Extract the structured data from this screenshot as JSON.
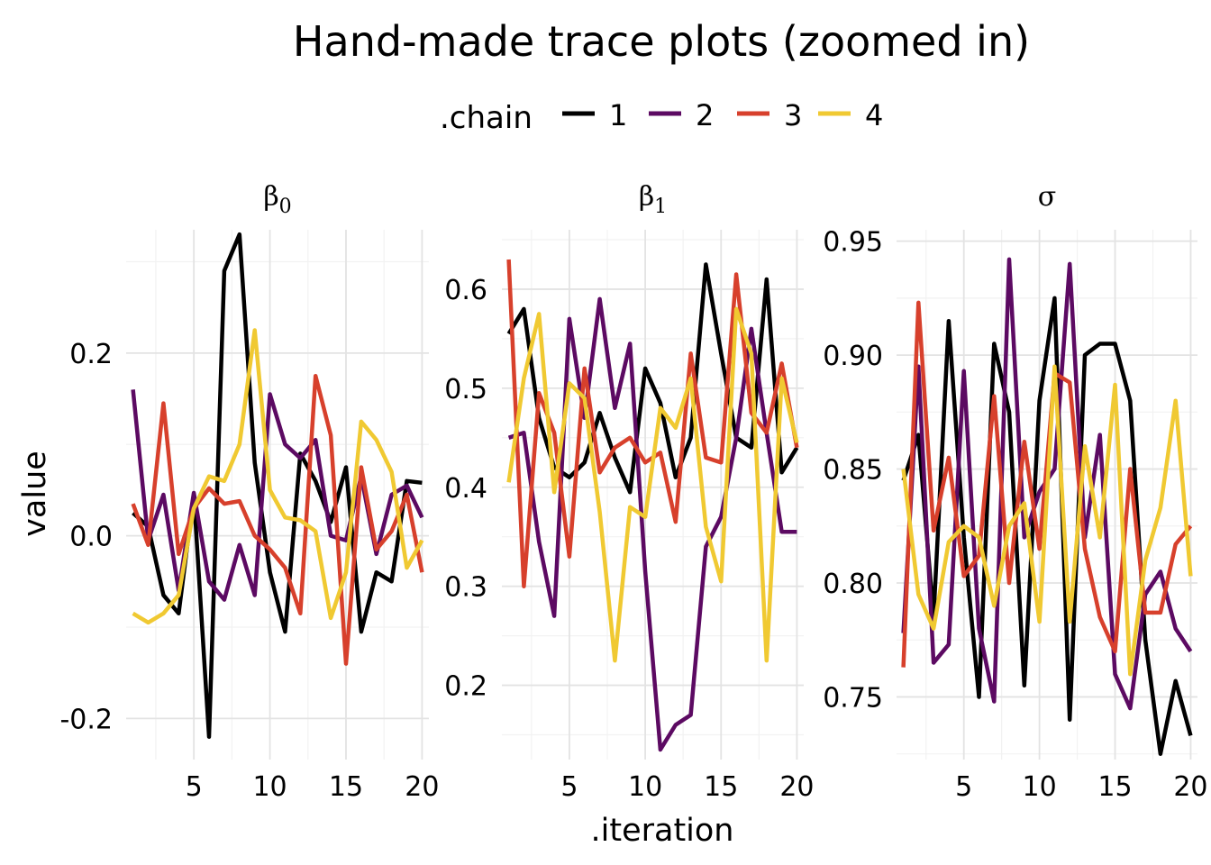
{
  "chart_data": {
    "type": "line",
    "title": "Hand-made trace plots (zoomed in)",
    "legend_title": ".chain",
    "legend_position": "top",
    "xlabel": ".iteration",
    "ylabel": "value",
    "grid": true,
    "colors": {
      "1": "#000000",
      "2": "#5c0a62",
      "3": "#d7402c",
      "4": "#f0c932"
    },
    "x": [
      1,
      2,
      3,
      4,
      5,
      6,
      7,
      8,
      9,
      10,
      11,
      12,
      13,
      14,
      15,
      16,
      17,
      18,
      19,
      20
    ],
    "x_ticks": [
      5,
      10,
      15,
      20
    ],
    "x_tick_labels": [
      "5",
      "10",
      "15",
      "20"
    ],
    "panels": [
      {
        "label_base": "β",
        "label_sub": "0",
        "ylim": [
          -0.245,
          0.335
        ],
        "y_ticks": [
          -0.2,
          0.0,
          0.2
        ],
        "y_tick_labels": [
          "-0.2",
          "0.0",
          "0.2"
        ],
        "series": [
          {
            "name": "1",
            "values": [
              0.025,
              0.01,
              -0.065,
              -0.085,
              0.045,
              -0.22,
              0.29,
              0.33,
              0.08,
              -0.04,
              -0.105,
              0.09,
              0.06,
              0.015,
              0.075,
              -0.105,
              -0.04,
              -0.05,
              0.06,
              0.058
            ]
          },
          {
            "name": "2",
            "values": [
              0.16,
              -0.005,
              0.045,
              -0.06,
              0.047,
              -0.05,
              -0.07,
              -0.01,
              -0.065,
              0.155,
              0.1,
              0.085,
              0.105,
              0.0,
              -0.005,
              0.065,
              -0.02,
              0.045,
              0.055,
              0.02
            ]
          },
          {
            "name": "3",
            "values": [
              0.035,
              -0.01,
              0.145,
              -0.02,
              0.03,
              0.052,
              0.035,
              0.038,
              0.0,
              -0.015,
              -0.035,
              -0.085,
              0.175,
              0.11,
              -0.14,
              0.075,
              -0.015,
              0.005,
              0.045,
              -0.04
            ]
          },
          {
            "name": "4",
            "values": [
              -0.085,
              -0.095,
              -0.085,
              -0.065,
              0.03,
              0.065,
              0.06,
              0.1,
              0.225,
              0.05,
              0.02,
              0.017,
              0.005,
              -0.09,
              -0.04,
              0.125,
              0.105,
              0.07,
              -0.035,
              -0.005
            ]
          }
        ]
      },
      {
        "label_base": "β",
        "label_sub": "1",
        "ylim": [
          0.125,
          0.66
        ],
        "y_ticks": [
          0.2,
          0.3,
          0.4,
          0.5,
          0.6
        ],
        "y_tick_labels": [
          "0.2",
          "0.3",
          "0.4",
          "0.5",
          "0.6"
        ],
        "series": [
          {
            "name": "1",
            "values": [
              0.555,
              0.58,
              0.47,
              0.42,
              0.41,
              0.425,
              0.475,
              0.43,
              0.395,
              0.52,
              0.485,
              0.41,
              0.45,
              0.625,
              0.535,
              0.45,
              0.44,
              0.61,
              0.415,
              0.44
            ]
          },
          {
            "name": "2",
            "values": [
              0.45,
              0.455,
              0.345,
              0.27,
              0.57,
              0.47,
              0.59,
              0.48,
              0.545,
              0.315,
              0.135,
              0.16,
              0.17,
              0.34,
              0.37,
              0.45,
              0.56,
              0.455,
              0.355,
              0.355
            ]
          },
          {
            "name": "3",
            "values": [
              0.63,
              0.3,
              0.495,
              0.455,
              0.33,
              0.52,
              0.415,
              0.44,
              0.45,
              0.425,
              0.435,
              0.365,
              0.535,
              0.43,
              0.425,
              0.615,
              0.475,
              0.455,
              0.525,
              0.44
            ]
          },
          {
            "name": "4",
            "values": [
              0.405,
              0.51,
              0.575,
              0.395,
              0.505,
              0.49,
              0.375,
              0.225,
              0.38,
              0.37,
              0.48,
              0.46,
              0.51,
              0.36,
              0.305,
              0.58,
              0.535,
              0.225,
              0.51,
              0.445
            ]
          }
        ]
      },
      {
        "label_base": "σ",
        "label_sub": "",
        "ylim": [
          0.7225,
          0.955
        ],
        "y_ticks": [
          0.75,
          0.8,
          0.85,
          0.9,
          0.95
        ],
        "y_tick_labels": [
          "0.75",
          "0.80",
          "0.85",
          "0.90",
          "0.95"
        ],
        "series": [
          {
            "name": "1",
            "values": [
              0.845,
              0.865,
              0.785,
              0.915,
              0.82,
              0.75,
              0.905,
              0.875,
              0.755,
              0.88,
              0.925,
              0.74,
              0.9,
              0.905,
              0.905,
              0.88,
              0.775,
              0.725,
              0.757,
              0.733
            ]
          },
          {
            "name": "2",
            "values": [
              0.778,
              0.895,
              0.765,
              0.773,
              0.893,
              0.78,
              0.748,
              0.942,
              0.82,
              0.84,
              0.85,
              0.94,
              0.82,
              0.865,
              0.76,
              0.745,
              0.795,
              0.805,
              0.78,
              0.77
            ]
          },
          {
            "name": "3",
            "values": [
              0.763,
              0.923,
              0.823,
              0.855,
              0.803,
              0.812,
              0.882,
              0.8,
              0.862,
              0.815,
              0.892,
              0.888,
              0.815,
              0.785,
              0.77,
              0.85,
              0.787,
              0.787,
              0.817,
              0.825
            ]
          },
          {
            "name": "4",
            "values": [
              0.85,
              0.795,
              0.78,
              0.818,
              0.825,
              0.82,
              0.79,
              0.825,
              0.835,
              0.783,
              0.895,
              0.783,
              0.86,
              0.82,
              0.887,
              0.76,
              0.81,
              0.833,
              0.88,
              0.803
            ]
          }
        ]
      }
    ]
  }
}
